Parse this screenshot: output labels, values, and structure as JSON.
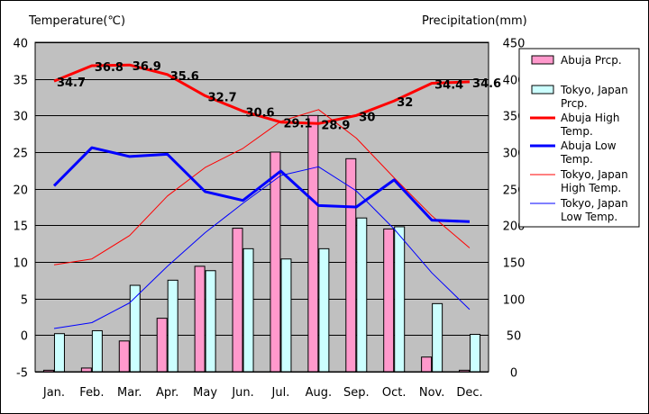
{
  "chart_data": {
    "type": "bar",
    "categories": [
      "Jan.",
      "Feb.",
      "Mar.",
      "Apr.",
      "May",
      "Jun.",
      "Jul.",
      "Aug.",
      "Sep.",
      "Oct.",
      "Nov.",
      "Dec."
    ],
    "ylabel": "Temperature(℃)",
    "y2label": "Precipitation(mm)",
    "ylim": [
      -5,
      40
    ],
    "y2lim": [
      0,
      450
    ],
    "yticks": [
      "-5",
      "0",
      "5",
      "10",
      "15",
      "20",
      "25",
      "30",
      "35",
      "40"
    ],
    "y2ticks": [
      "0",
      "50",
      "100",
      "150",
      "200",
      "250",
      "300",
      "350",
      "400",
      "450"
    ],
    "grid": true,
    "legend_position": "right",
    "series": [
      {
        "name": "Abuja Prcp.",
        "kind": "bar",
        "axis": "y2",
        "color": "#ff99cc",
        "values": [
          2,
          5,
          42,
          73,
          144,
          196,
          300,
          350,
          291,
          195,
          20,
          2
        ]
      },
      {
        "name": "Tokyo, Japan Prcp.",
        "kind": "bar",
        "axis": "y2",
        "color": "#ccffff",
        "values": [
          52,
          56,
          118,
          125,
          138,
          168,
          154,
          168,
          210,
          198,
          93,
          51
        ]
      },
      {
        "name": "Abuja High Temp.",
        "kind": "line",
        "axis": "y",
        "color": "#ff0000",
        "width": 3,
        "values": [
          34.7,
          36.8,
          36.9,
          35.6,
          32.7,
          30.6,
          29.1,
          28.9,
          30,
          32,
          34.4,
          34.6
        ],
        "labels": [
          "34.7",
          "36.8",
          "36.9",
          "35.6",
          "32.7",
          "30.6",
          "29.1",
          "28.9",
          "30",
          "32",
          "34.4",
          "34.6"
        ]
      },
      {
        "name": "Abuja Low Temp.",
        "kind": "line",
        "axis": "y",
        "color": "#0000ff",
        "width": 3,
        "values": [
          20.4,
          25.6,
          24.4,
          24.7,
          19.6,
          18.4,
          22.4,
          17.7,
          17.5,
          21.2,
          15.7,
          15.5
        ]
      },
      {
        "name": "Tokyo, Japan High Temp.",
        "kind": "line",
        "axis": "y",
        "color": "#ff0000",
        "width": 1,
        "values": [
          9.6,
          10.4,
          13.6,
          19.0,
          22.9,
          25.5,
          29.2,
          30.8,
          26.9,
          21.5,
          16.3,
          11.9
        ]
      },
      {
        "name": "Tokyo, Japan Low Temp.",
        "kind": "line",
        "axis": "y",
        "color": "#0000ff",
        "width": 1,
        "values": [
          0.9,
          1.7,
          4.4,
          9.4,
          14.0,
          18.0,
          21.8,
          23.0,
          19.7,
          14.5,
          8.5,
          3.5
        ]
      }
    ]
  }
}
